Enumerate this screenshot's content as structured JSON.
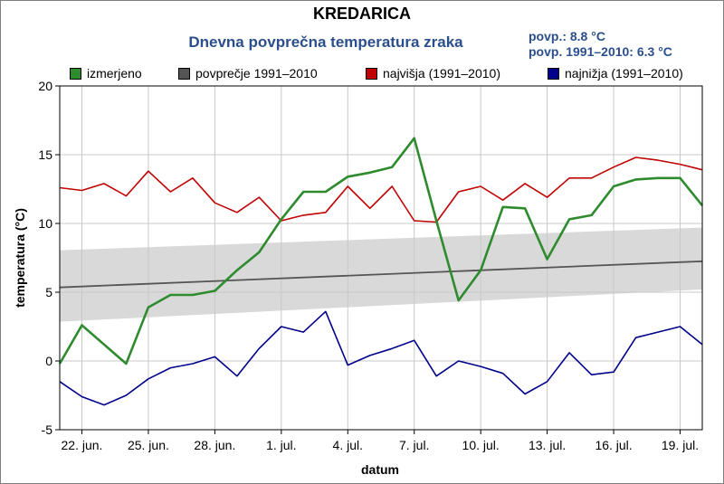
{
  "chart_data": {
    "type": "line",
    "title": "KREDARICA",
    "subtitle": "Dnevna povprečna temperatura zraka",
    "annotations": [
      "povp.: 8.8 °C",
      "povp. 1991–2010: 6.3 °C"
    ],
    "xlabel": "datum",
    "ylabel": "temperatura (°C)",
    "ylim": [
      -5,
      20
    ],
    "yticks": [
      -5,
      0,
      5,
      10,
      15,
      20
    ],
    "x_ticks": [
      {
        "day": 1,
        "label": "22. jun."
      },
      {
        "day": 4,
        "label": "25. jun."
      },
      {
        "day": 7,
        "label": "28. jun."
      },
      {
        "day": 10,
        "label": "1. jul."
      },
      {
        "day": 13,
        "label": "4. jul."
      },
      {
        "day": 16,
        "label": "7. jul."
      },
      {
        "day": 19,
        "label": "10. jul."
      },
      {
        "day": 22,
        "label": "13. jul."
      },
      {
        "day": 25,
        "label": "16. jul."
      },
      {
        "day": 28,
        "label": "19. jul."
      }
    ],
    "grid": true,
    "legend_position": "top",
    "series": [
      {
        "name": "izmerjeno",
        "color": "#2e8b2e",
        "values": [
          -0.2,
          2.6,
          1.2,
          -0.2,
          3.9,
          4.8,
          4.8,
          5.1,
          6.6,
          7.9,
          10.3,
          12.3,
          12.3,
          13.4,
          13.7,
          14.1,
          16.2,
          10.2,
          4.4,
          6.6,
          11.2,
          11.1,
          7.4,
          10.3,
          10.6,
          12.7,
          13.2,
          13.3,
          13.3,
          11.3
        ]
      },
      {
        "name": "povprečje 1991–2010",
        "color": "#555555",
        "band_color": "#d9d9d9",
        "values": [
          5.35,
          7.25
        ],
        "band_lower": [
          2.85,
          5.2
        ],
        "band_upper": [
          8.05,
          9.7
        ]
      },
      {
        "name": "najvišja (1991–2010)",
        "color": "#c00000",
        "values": [
          12.6,
          12.4,
          12.9,
          12.0,
          13.8,
          12.3,
          13.3,
          11.5,
          10.8,
          11.9,
          10.2,
          10.6,
          10.8,
          12.7,
          11.1,
          12.7,
          10.2,
          10.1,
          12.3,
          12.7,
          11.7,
          12.9,
          11.9,
          13.3,
          13.3,
          14.1,
          14.8,
          14.6,
          14.3,
          13.9
        ]
      },
      {
        "name": "najnižja (1991–2010)",
        "color": "#00008b",
        "values": [
          -1.5,
          -2.6,
          -3.2,
          -2.5,
          -1.3,
          -0.5,
          -0.2,
          0.3,
          -1.1,
          0.9,
          2.5,
          2.1,
          3.6,
          -0.3,
          0.4,
          0.9,
          1.5,
          -1.1,
          0.0,
          -0.4,
          -0.9,
          -2.4,
          -1.5,
          0.6,
          -1.0,
          -0.8,
          1.7,
          2.1,
          2.5,
          1.2
        ]
      }
    ]
  }
}
